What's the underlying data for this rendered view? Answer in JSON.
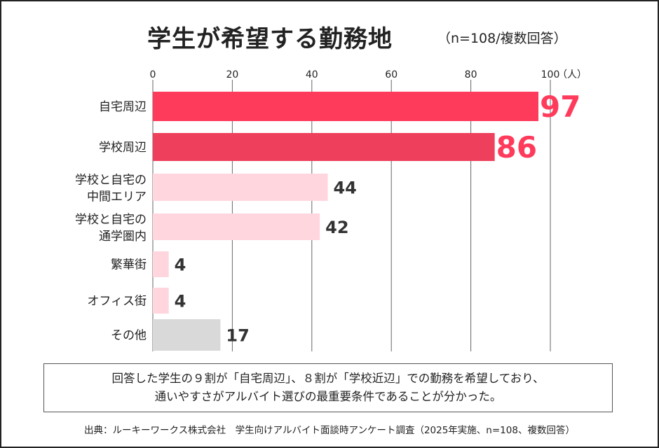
{
  "title": "学生が希望する勤務地",
  "subtitle": "（n=108/複数回答）",
  "chart_data": {
    "type": "bar",
    "orientation": "horizontal",
    "categories": [
      [
        "自宅周辺"
      ],
      [
        "学校周辺"
      ],
      [
        "学校と自宅の",
        "中間エリア"
      ],
      [
        "学校と自宅の",
        "通学圏内"
      ],
      [
        "繁華街"
      ],
      [
        "オフィス街"
      ],
      [
        "その他"
      ]
    ],
    "values": [
      97,
      86,
      44,
      42,
      4,
      4,
      17
    ],
    "xlim": [
      0,
      100
    ],
    "ticks": [
      0,
      20,
      40,
      60,
      80,
      100
    ],
    "unit_label": "（人）",
    "grid": true,
    "colors": [
      "#ff3b5c",
      "#ee405c",
      "#ffd6de",
      "#ffd6de",
      "#ffd6de",
      "#ffd6de",
      "#d9d9d9"
    ],
    "label_colors": [
      "#ff3b5c",
      "#ff3b5c",
      "#333333",
      "#333333",
      "#333333",
      "#333333",
      "#333333"
    ]
  },
  "note": [
    "回答した学生の９割が「自宅周辺」、８割が「学校近辺」での勤務を希望しており、",
    "通いやすさがアルバイト選びの最重要条件であることが分かった。"
  ],
  "source": "出典：ルーキーワークス株式会社　学生向けアルバイト面談時アンケート調査（2025年実施、n=108、複数回答）"
}
